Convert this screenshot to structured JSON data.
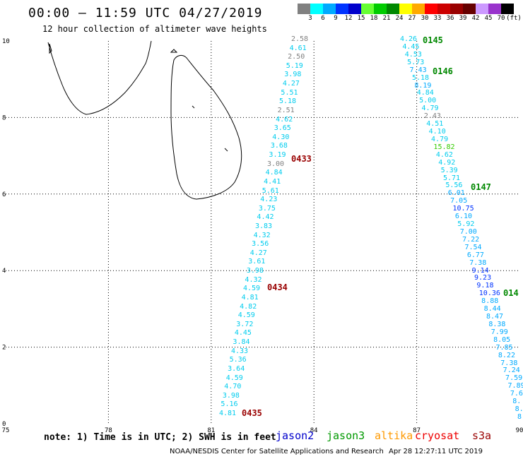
{
  "header": {
    "title": "00:00 – 11:59 UTC 04/27/2019",
    "subtitle": "12 hour collection of altimeter wave heights"
  },
  "colorbar": {
    "colors": [
      "#808080",
      "#00ffff",
      "#00aaff",
      "#0033ff",
      "#0000cc",
      "#66ff33",
      "#00cc00",
      "#008800",
      "#ffff00",
      "#ffaa00",
      "#ff0000",
      "#cc0000",
      "#990000",
      "#660000",
      "#cc99ff",
      "#9933cc",
      "#000000"
    ],
    "labels": [
      "3",
      "6",
      "9",
      "12",
      "15",
      "18",
      "21",
      "24",
      "27",
      "30",
      "33",
      "36",
      "39",
      "42",
      "45",
      "70",
      "(ft)"
    ]
  },
  "axes": {
    "x_ticks": [
      "75",
      "78",
      "81",
      "84",
      "87",
      "90"
    ],
    "y_ticks": [
      "0",
      "2",
      "4",
      "6",
      "8",
      "10"
    ]
  },
  "passes": [
    {
      "label": "0145",
      "color": "#008800"
    },
    {
      "label": "0146",
      "color": "#008800"
    },
    {
      "label": "0147",
      "color": "#008800"
    },
    {
      "label": "014",
      "color": "#008800"
    },
    {
      "label": "0433",
      "color": "#990000"
    },
    {
      "label": "0434",
      "color": "#990000"
    },
    {
      "label": "0435",
      "color": "#990000"
    }
  ],
  "track_left": [
    {
      "v": "2.58",
      "c": "#808080"
    },
    {
      "v": "4.61",
      "c": "#00ccee"
    },
    {
      "v": "2.50",
      "c": "#808080"
    },
    {
      "v": "5.19",
      "c": "#00ccee"
    },
    {
      "v": "3.98",
      "c": "#00ccee"
    },
    {
      "v": "4.27",
      "c": "#00ccee"
    },
    {
      "v": "5.51",
      "c": "#00ccee"
    },
    {
      "v": "5.18",
      "c": "#00ccee"
    },
    {
      "v": "2.51",
      "c": "#808080"
    },
    {
      "v": "4.62",
      "c": "#00ccee"
    },
    {
      "v": "3.65",
      "c": "#00ccee"
    },
    {
      "v": "4.30",
      "c": "#00ccee"
    },
    {
      "v": "3.68",
      "c": "#00ccee"
    },
    {
      "v": "3.19",
      "c": "#00ccee"
    },
    {
      "v": "3.00",
      "c": "#808080"
    },
    {
      "v": "4.84",
      "c": "#00ccee"
    },
    {
      "v": "4.41",
      "c": "#00ccee"
    },
    {
      "v": "5.61",
      "c": "#00ccee"
    },
    {
      "v": "4.23",
      "c": "#00ccee"
    },
    {
      "v": "3.75",
      "c": "#00ccee"
    },
    {
      "v": "4.42",
      "c": "#00ccee"
    },
    {
      "v": "3.83",
      "c": "#00ccee"
    },
    {
      "v": "4.32",
      "c": "#00ccee"
    },
    {
      "v": "3.56",
      "c": "#00ccee"
    },
    {
      "v": "4.27",
      "c": "#00ccee"
    },
    {
      "v": "3.61",
      "c": "#00ccee"
    },
    {
      "v": "3.98",
      "c": "#00ccee"
    },
    {
      "v": "4.32",
      "c": "#00ccee"
    },
    {
      "v": "4.59",
      "c": "#00ccee"
    },
    {
      "v": "4.81",
      "c": "#00ccee"
    },
    {
      "v": "4.82",
      "c": "#00ccee"
    },
    {
      "v": "4.59",
      "c": "#00ccee"
    },
    {
      "v": "3.72",
      "c": "#00ccee"
    },
    {
      "v": "4.45",
      "c": "#00ccee"
    },
    {
      "v": "3.84",
      "c": "#00ccee"
    },
    {
      "v": "4.33",
      "c": "#00ccee"
    },
    {
      "v": "5.36",
      "c": "#00ccee"
    },
    {
      "v": "3.64",
      "c": "#00ccee"
    },
    {
      "v": "4.59",
      "c": "#00ccee"
    },
    {
      "v": "4.70",
      "c": "#00ccee"
    },
    {
      "v": "3.98",
      "c": "#00ccee"
    },
    {
      "v": "5.16",
      "c": "#00ccee"
    },
    {
      "v": "4.81",
      "c": "#00ccee"
    }
  ],
  "track_right": [
    {
      "v": "4.26",
      "c": "#00ccee"
    },
    {
      "v": "4.45",
      "c": "#00ccee"
    },
    {
      "v": "4.53",
      "c": "#00ccee"
    },
    {
      "v": "5.73",
      "c": "#00ccee"
    },
    {
      "v": "7.43",
      "c": "#00aaff"
    },
    {
      "v": "5.18",
      "c": "#00ccee"
    },
    {
      "v": "8.19",
      "c": "#00aaff"
    },
    {
      "v": "4.84",
      "c": "#00ccee"
    },
    {
      "v": "5.00",
      "c": "#00ccee"
    },
    {
      "v": "4.79",
      "c": "#00ccee"
    },
    {
      "v": "2.43",
      "c": "#808080"
    },
    {
      "v": "4.51",
      "c": "#00ccee"
    },
    {
      "v": "4.10",
      "c": "#00ccee"
    },
    {
      "v": "4.79",
      "c": "#00ccee"
    },
    {
      "v": "15.82",
      "c": "#33cc00"
    },
    {
      "v": "4.62",
      "c": "#00ccee"
    },
    {
      "v": "4.92",
      "c": "#00ccee"
    },
    {
      "v": "5.39",
      "c": "#00ccee"
    },
    {
      "v": "5.71",
      "c": "#00ccee"
    },
    {
      "v": "5.56",
      "c": "#00ccee"
    },
    {
      "v": "6.01",
      "c": "#00aaff"
    },
    {
      "v": "7.05",
      "c": "#00aaff"
    },
    {
      "v": "10.75",
      "c": "#0033ff"
    },
    {
      "v": "6.10",
      "c": "#00aaff"
    },
    {
      "v": "5.92",
      "c": "#00ccee"
    },
    {
      "v": "7.00",
      "c": "#00aaff"
    },
    {
      "v": "7.22",
      "c": "#00aaff"
    },
    {
      "v": "7.54",
      "c": "#00aaff"
    },
    {
      "v": "6.77",
      "c": "#00aaff"
    },
    {
      "v": "7.38",
      "c": "#00aaff"
    },
    {
      "v": "9.14",
      "c": "#0033ff"
    },
    {
      "v": "9.23",
      "c": "#0033ff"
    },
    {
      "v": "9.18",
      "c": "#0033ff"
    },
    {
      "v": "10.36",
      "c": "#0033ff"
    },
    {
      "v": "8.88",
      "c": "#00aaff"
    },
    {
      "v": "8.44",
      "c": "#00aaff"
    },
    {
      "v": "8.47",
      "c": "#00aaff"
    },
    {
      "v": "8.38",
      "c": "#00aaff"
    },
    {
      "v": "7.99",
      "c": "#00aaff"
    },
    {
      "v": "8.05",
      "c": "#00aaff"
    },
    {
      "v": "7.85",
      "c": "#00aaff"
    },
    {
      "v": "8.22",
      "c": "#00aaff"
    },
    {
      "v": "7.38",
      "c": "#00aaff"
    },
    {
      "v": "7.24",
      "c": "#00aaff"
    },
    {
      "v": "7.59",
      "c": "#00aaff"
    },
    {
      "v": "7.89",
      "c": "#00aaff"
    },
    {
      "v": "7.6",
      "c": "#00aaff"
    },
    {
      "v": "8.",
      "c": "#00aaff"
    },
    {
      "v": "8.",
      "c": "#00aaff"
    },
    {
      "v": "8",
      "c": "#00aaff"
    }
  ],
  "footer": {
    "note": "note: 1) Time is in UTC; 2) SWH is in feet",
    "satellites": [
      {
        "name": "jason2",
        "color": "#0000cc"
      },
      {
        "name": "jason3",
        "color": "#009900"
      },
      {
        "name": "altika",
        "color": "#ff9900"
      },
      {
        "name": "cryosat",
        "color": "#ee0000"
      },
      {
        "name": "s3a",
        "color": "#990000"
      }
    ],
    "credit": "NOAA/NESDIS Center for Satellite Applications and Research",
    "timestamp": "Apr 28 12:27:11 UTC 2019"
  }
}
